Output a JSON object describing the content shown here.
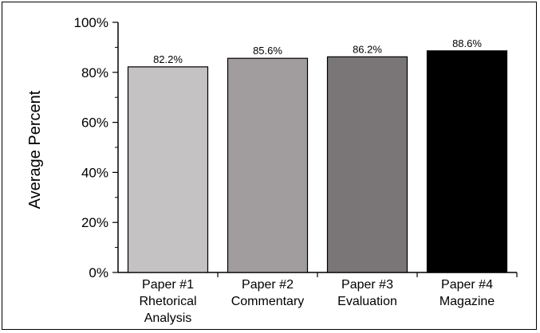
{
  "chart_data": {
    "type": "bar",
    "ylabel": "Average Percent",
    "xlabel": "",
    "ylim": [
      0,
      100
    ],
    "yticks": [
      "0%",
      "20%",
      "40%",
      "60%",
      "80%",
      "100%"
    ],
    "ytick_values": [
      0,
      20,
      40,
      60,
      80,
      100
    ],
    "grid": false,
    "categories": [
      {
        "lines": [
          "Paper #1",
          "Rhetorical",
          "Analysis"
        ]
      },
      {
        "lines": [
          "Paper #2",
          "Commentary"
        ]
      },
      {
        "lines": [
          "Paper #3",
          "Evaluation"
        ]
      },
      {
        "lines": [
          "Paper #4",
          "Magazine"
        ]
      }
    ],
    "values": [
      82.2,
      85.6,
      86.2,
      88.6
    ],
    "value_labels": [
      "82.2%",
      "85.6%",
      "86.2%",
      "88.6%"
    ],
    "colors": [
      "#c4c2c3",
      "#a19d9e",
      "#7a7576",
      "#000000"
    ]
  }
}
